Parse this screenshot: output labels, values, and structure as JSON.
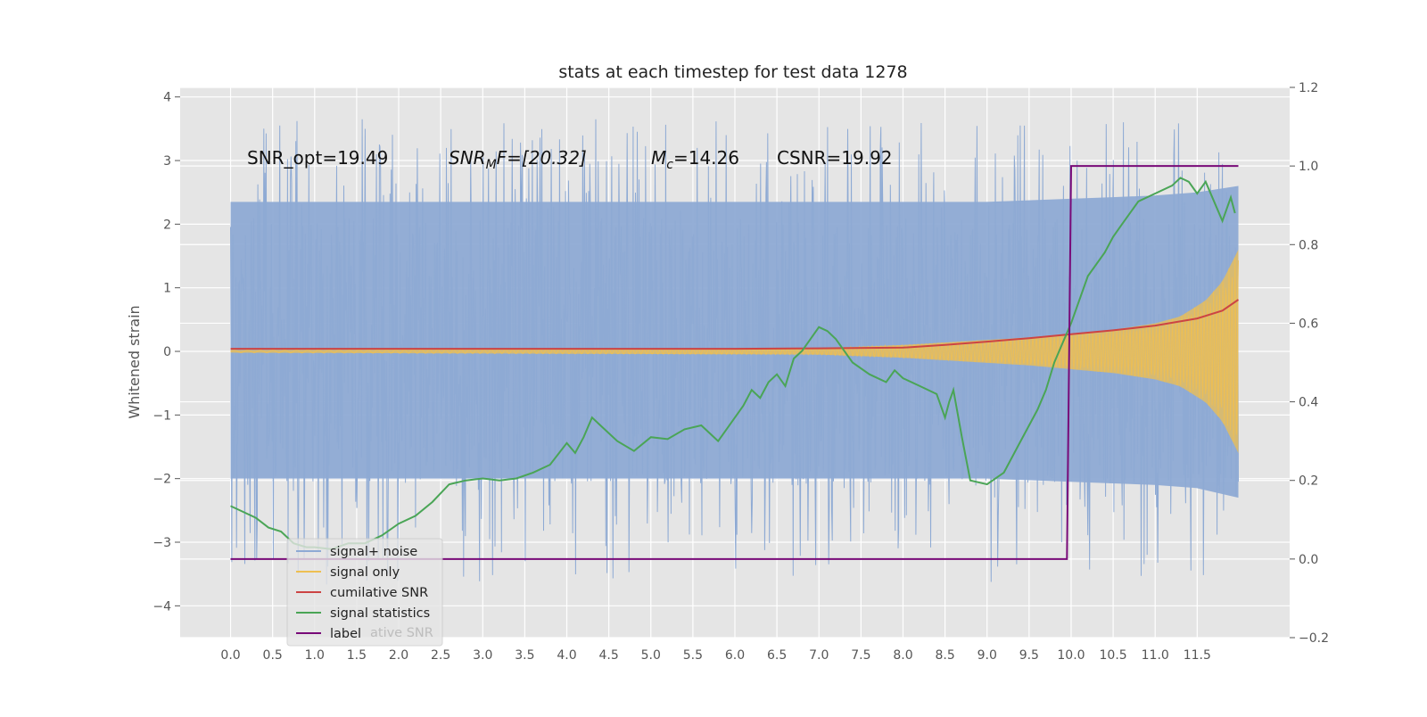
{
  "chart_data": {
    "type": "line",
    "title": "stats at each timestep for test data 1278",
    "ylabel": "Whitened strain",
    "xlim": [
      -0.6,
      12.6
    ],
    "ylim": [
      -4.5,
      4.15
    ],
    "y2lim": [
      -0.2,
      1.2
    ],
    "xticks": [
      0.0,
      0.5,
      1.0,
      1.5,
      2.0,
      2.5,
      3.0,
      3.5,
      4.0,
      4.5,
      5.0,
      5.5,
      6.0,
      6.5,
      7.0,
      7.5,
      8.0,
      8.5,
      9.0,
      9.5,
      10.0,
      10.5,
      11.0,
      11.5
    ],
    "xtick_labels": [
      "0.0",
      "0.5",
      "1.0",
      "1.5",
      "2.0",
      "2.5",
      "3.0",
      "3.5",
      "4.0",
      "4.5",
      "5.0",
      "5.5",
      "6.0",
      "6.5",
      "7.0",
      "7.5",
      "8.0",
      "8.5",
      "9.0",
      "9.5",
      "10.0",
      "10.5",
      "11.0",
      "11.5"
    ],
    "yticks": [
      -4,
      -3,
      -2,
      -1,
      0,
      1,
      2,
      3,
      4
    ],
    "ytick_labels": [
      "−4",
      "−3",
      "−2",
      "−1",
      "0",
      "1",
      "2",
      "3",
      "4"
    ],
    "y2ticks": [
      -0.2,
      0.0,
      0.2,
      0.4,
      0.6,
      0.8,
      1.0,
      1.2
    ],
    "y2tick_labels": [
      "−0.2",
      "0.0",
      "0.2",
      "0.4",
      "0.6",
      "0.8",
      "1.0",
      "1.2"
    ],
    "grid": true,
    "legend_position": "lower-left",
    "annotations": {
      "snr_opt": "SNR_opt=19.49",
      "snr_mf_base": "SNR",
      "snr_mf_sub": "M",
      "snr_mf_rest": "F=[20.32]",
      "mc_base": "M",
      "mc_sub": "c",
      "mc_rest": "=14.26",
      "csnr": "CSNR=19.92"
    },
    "legend_ghost_label": "ative SNR",
    "colors": {
      "plot_bg": "#e5e5e5",
      "grid": "#ffffff",
      "noise": "#8eaad4",
      "signal": "#eebf52",
      "csnr": "#cc4444",
      "stats": "#4aa556",
      "label": "#780a78"
    },
    "series": [
      {
        "name": "signal+ noise",
        "axis": "left",
        "style": "dense noisy trace, mostly within -2..2.3 with spikes to about +-3.8",
        "envelope_t": [
          0.0,
          6.0,
          8.0,
          9.0,
          10.0,
          11.0,
          11.5,
          11.8,
          11.99
        ],
        "envelope_top": [
          2.35,
          2.35,
          2.35,
          2.35,
          2.4,
          2.45,
          2.5,
          2.55,
          2.6
        ],
        "envelope_bottom": [
          -2.0,
          -2.0,
          -2.0,
          -2.0,
          -2.05,
          -2.1,
          -2.15,
          -2.2,
          -2.3
        ]
      },
      {
        "name": "signal only",
        "axis": "left",
        "style": "chirp whose amplitude grows toward the end",
        "envelope_t": [
          0.0,
          7.0,
          8.0,
          8.5,
          9.0,
          9.5,
          10.0,
          10.5,
          11.0,
          11.3,
          11.6,
          11.8,
          11.99
        ],
        "envelope_amp": [
          0.02,
          0.05,
          0.1,
          0.14,
          0.18,
          0.22,
          0.28,
          0.34,
          0.44,
          0.55,
          0.8,
          1.1,
          1.6
        ]
      },
      {
        "name": "cumilative SNR",
        "axis": "right",
        "x": [
          0.0,
          2.0,
          4.0,
          6.0,
          7.0,
          8.0,
          8.5,
          9.0,
          9.5,
          10.0,
          10.5,
          11.0,
          11.5,
          11.8,
          11.99
        ],
        "y": [
          0.535,
          0.535,
          0.535,
          0.535,
          0.536,
          0.538,
          0.545,
          0.553,
          0.562,
          0.572,
          0.582,
          0.594,
          0.612,
          0.632,
          0.66
        ]
      },
      {
        "name": "signal statistics",
        "axis": "right",
        "x": [
          0.0,
          0.15,
          0.3,
          0.45,
          0.6,
          0.75,
          0.9,
          1.0,
          1.2,
          1.4,
          1.6,
          1.8,
          2.0,
          2.2,
          2.4,
          2.6,
          2.8,
          3.0,
          3.2,
          3.4,
          3.6,
          3.8,
          4.0,
          4.1,
          4.2,
          4.3,
          4.4,
          4.6,
          4.8,
          5.0,
          5.2,
          5.4,
          5.6,
          5.8,
          5.9,
          6.0,
          6.1,
          6.2,
          6.3,
          6.4,
          6.5,
          6.6,
          6.7,
          6.8,
          6.9,
          7.0,
          7.1,
          7.2,
          7.3,
          7.4,
          7.6,
          7.8,
          7.9,
          8.0,
          8.2,
          8.4,
          8.5,
          8.55,
          8.6,
          8.7,
          8.8,
          9.0,
          9.2,
          9.4,
          9.6,
          9.7,
          9.8,
          9.9,
          10.0,
          10.2,
          10.4,
          10.5,
          10.6,
          10.8,
          11.0,
          11.2,
          11.3,
          11.4,
          11.5,
          11.6,
          11.7,
          11.8,
          11.9,
          11.95
        ],
        "y": [
          0.135,
          0.12,
          0.105,
          0.08,
          0.07,
          0.04,
          0.03,
          0.03,
          0.025,
          0.04,
          0.04,
          0.06,
          0.09,
          0.11,
          0.145,
          0.19,
          0.2,
          0.205,
          0.2,
          0.205,
          0.22,
          0.24,
          0.295,
          0.27,
          0.31,
          0.36,
          0.34,
          0.3,
          0.275,
          0.31,
          0.305,
          0.33,
          0.34,
          0.3,
          0.33,
          0.36,
          0.39,
          0.43,
          0.41,
          0.45,
          0.47,
          0.44,
          0.51,
          0.53,
          0.56,
          0.59,
          0.58,
          0.56,
          0.53,
          0.5,
          0.47,
          0.45,
          0.48,
          0.46,
          0.44,
          0.42,
          0.36,
          0.4,
          0.43,
          0.31,
          0.2,
          0.19,
          0.22,
          0.3,
          0.38,
          0.43,
          0.5,
          0.55,
          0.6,
          0.72,
          0.78,
          0.82,
          0.85,
          0.91,
          0.93,
          0.95,
          0.97,
          0.96,
          0.93,
          0.96,
          0.91,
          0.86,
          0.92,
          0.88
        ]
      },
      {
        "name": "label",
        "axis": "right",
        "x": [
          0.0,
          9.95,
          10.0,
          11.99
        ],
        "y": [
          0.0,
          0.0,
          1.0,
          1.0
        ]
      }
    ]
  }
}
